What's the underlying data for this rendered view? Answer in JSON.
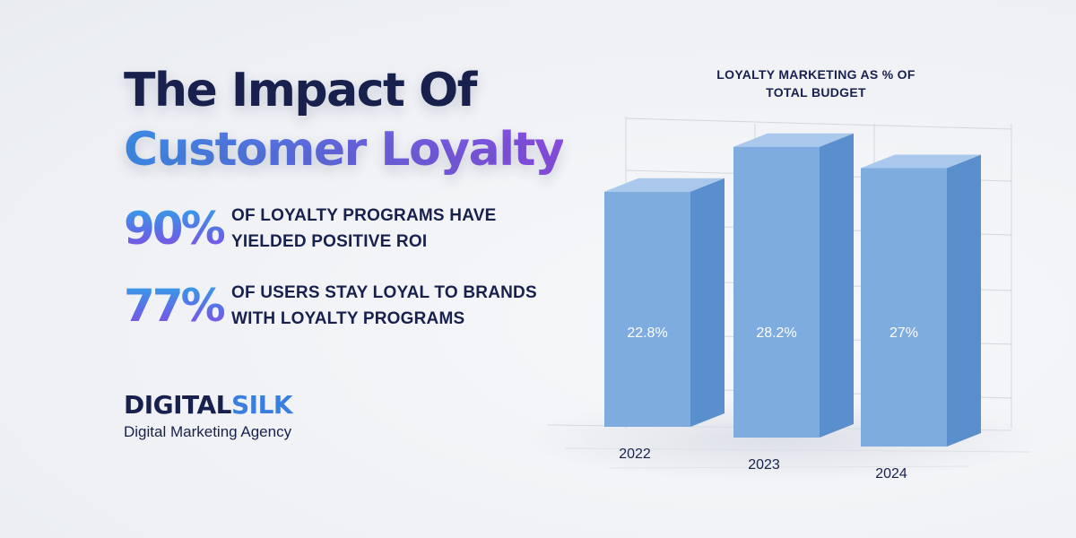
{
  "headline": {
    "line1": "The Impact Of",
    "line2": "Customer Loyalty"
  },
  "stats": [
    {
      "value": "90%",
      "text": "OF LOYALTY PROGRAMS HAVE\nYIELDED POSITIVE ROI"
    },
    {
      "value": "77%",
      "text": "OF USERS STAY LOYAL TO BRANDS\nWITH LOYALTY PROGRAMS"
    }
  ],
  "brand": {
    "name_part1": "DIGITAL",
    "name_part2": "SILK",
    "tagline": "Digital Marketing Agency"
  },
  "colors": {
    "navy": "#18214d",
    "bar_front": "#7eacdf",
    "bar_side": "#5a8fcd",
    "bar_top": "#a9c8ec",
    "accent": "#3a7fe0"
  },
  "chart_data": {
    "type": "bar",
    "title": "LOYALTY MARKETING AS % OF TOTAL BUDGET",
    "categories": [
      "2022",
      "2023",
      "2024"
    ],
    "values": [
      22.8,
      28.2,
      27
    ],
    "data_labels": [
      "22.8%",
      "28.2%",
      "27%"
    ],
    "style": "3d",
    "grid": true,
    "legend": "none"
  }
}
